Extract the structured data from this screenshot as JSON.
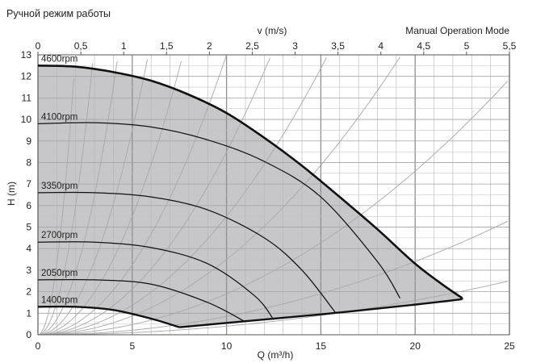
{
  "title_ru": "Ручной режим работы",
  "title_en": "Manual Operation Mode",
  "chart_data": {
    "type": "line",
    "title": "Manual Operation Mode",
    "xlabel": "Q (m³/h)",
    "ylabel": "H (m)",
    "x2label": "v (m/s)",
    "xlim": [
      0,
      25
    ],
    "ylim": [
      0,
      13
    ],
    "x2lim": [
      0,
      5.5
    ],
    "x_ticks": [
      "0",
      "5",
      "10",
      "15",
      "20",
      "25"
    ],
    "y_ticks": [
      "0",
      "1",
      "2",
      "3",
      "4",
      "5",
      "6",
      "7",
      "8",
      "9",
      "10",
      "11",
      "12",
      "13"
    ],
    "x2_ticks": [
      "0",
      "0,5",
      "1",
      "1,5",
      "2",
      "2,5",
      "3",
      "3,5",
      "4",
      "4,5",
      "5",
      "5,5"
    ],
    "grid": true,
    "series": [
      {
        "name": "4600rpm",
        "x": [
          0,
          2,
          4,
          6,
          8,
          10,
          12,
          14,
          16,
          18,
          20,
          21.5,
          22.5
        ],
        "y": [
          12.5,
          12.45,
          12.2,
          11.8,
          11.15,
          10.3,
          9.15,
          7.85,
          6.4,
          4.9,
          3.3,
          2.3,
          1.7
        ]
      },
      {
        "name": "4100rpm",
        "x": [
          0,
          3,
          6,
          9,
          12,
          15,
          18,
          19.2
        ],
        "y": [
          9.8,
          9.85,
          9.65,
          9.05,
          8.05,
          6.4,
          3.4,
          1.7
        ]
      },
      {
        "name": "3350rpm",
        "x": [
          0,
          3,
          6,
          9,
          12,
          14,
          15.8
        ],
        "y": [
          6.6,
          6.6,
          6.4,
          5.8,
          4.5,
          3.0,
          1.0
        ]
      },
      {
        "name": "2700rpm",
        "x": [
          0,
          3,
          6,
          9,
          11.5,
          12.5
        ],
        "y": [
          4.3,
          4.3,
          4.05,
          3.3,
          1.8,
          0.7
        ]
      },
      {
        "name": "2050rpm",
        "x": [
          0,
          3,
          6,
          9,
          11
        ],
        "y": [
          2.55,
          2.55,
          2.35,
          1.5,
          0.6
        ]
      },
      {
        "name": "1400rpm",
        "x": [
          0,
          2,
          4,
          6,
          7.5
        ],
        "y": [
          1.3,
          1.3,
          1.15,
          0.75,
          0.35
        ]
      }
    ],
    "min_curve": {
      "x": [
        7.5,
        10,
        15,
        20,
        22.5
      ],
      "y": [
        0.35,
        0.55,
        0.95,
        1.4,
        1.65
      ]
    },
    "system_curves_k": [
      3.3,
      1.5,
      0.72,
      0.38,
      0.22,
      0.13,
      0.085,
      0.055,
      0.035,
      0.019,
      0.0085,
      0.004
    ]
  }
}
